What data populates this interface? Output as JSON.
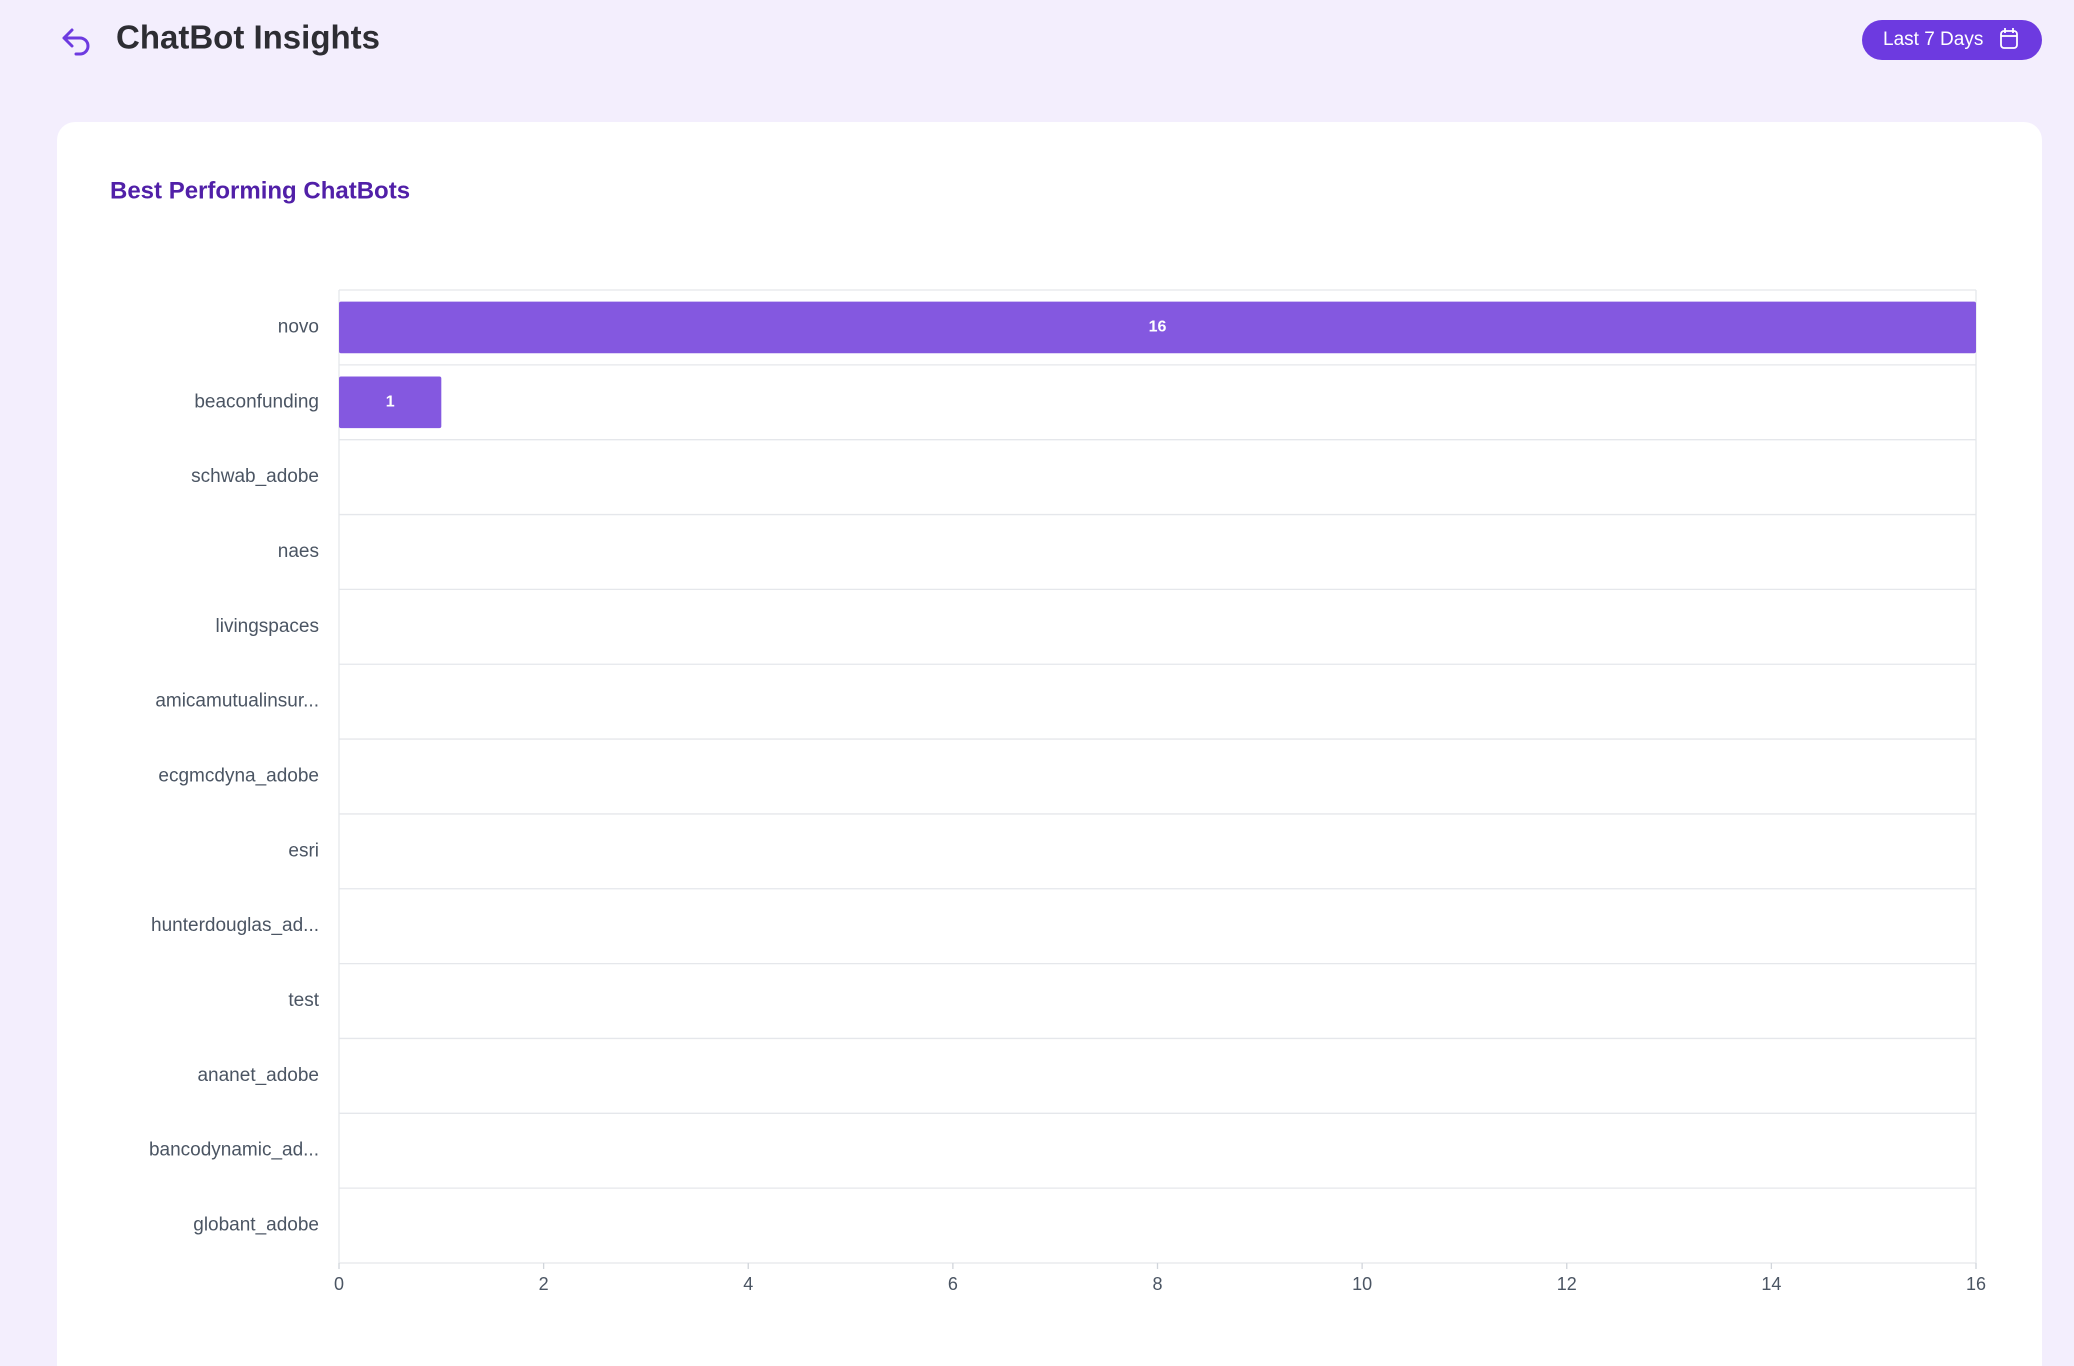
{
  "header": {
    "title": "ChatBot Insights",
    "date_range": "Last 7 Days"
  },
  "chart_data": {
    "type": "bar",
    "orientation": "horizontal",
    "title": "Best Performing ChatBots",
    "categories": [
      "novo",
      "beaconfunding",
      "schwab_adobe",
      "naes",
      "livingspaces",
      "amicamutualinsur...",
      "ecgmcdyna_adobe",
      "esri",
      "hunterdouglas_ad...",
      "test",
      "ananet_adobe",
      "bancodynamic_ad...",
      "globant_adobe"
    ],
    "values": [
      16,
      1,
      0,
      0,
      0,
      0,
      0,
      0,
      0,
      0,
      0,
      0,
      0
    ],
    "color": "#8458e0",
    "xlim": [
      0,
      16
    ],
    "xticks": [
      0,
      2,
      4,
      6,
      8,
      10,
      12,
      14,
      16
    ]
  }
}
